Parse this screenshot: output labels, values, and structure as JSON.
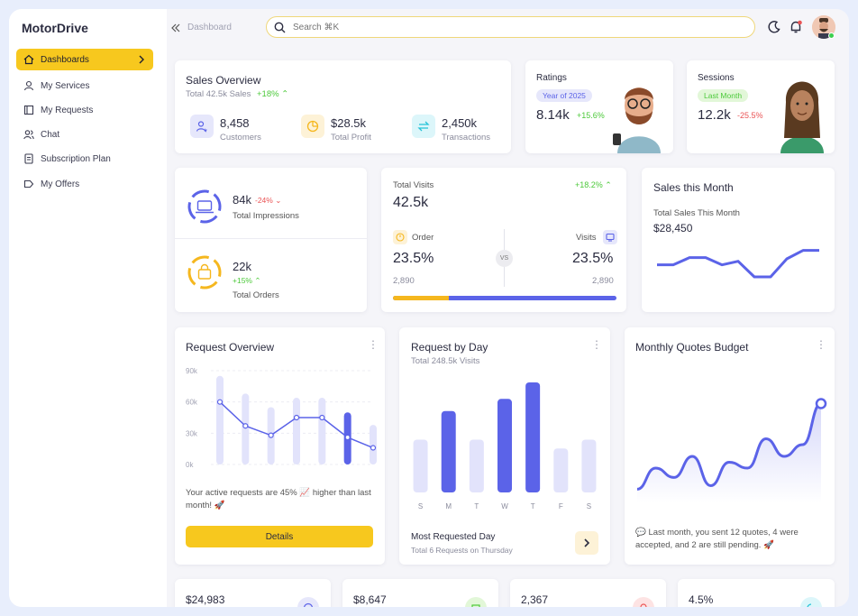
{
  "brand": "MotorDrive",
  "sidebar": {
    "items": [
      {
        "label": "Dashboards",
        "icon": "home-icon"
      },
      {
        "label": "My Services",
        "icon": "user-icon"
      },
      {
        "label": "My Requests",
        "icon": "book-icon"
      },
      {
        "label": "Chat",
        "icon": "users-icon"
      },
      {
        "label": "Subscription Plan",
        "icon": "document-icon"
      },
      {
        "label": "My Offers",
        "icon": "tag-icon"
      }
    ]
  },
  "topbar": {
    "breadcrumb": "Dashboard",
    "search_placeholder": "Search ⌘K"
  },
  "sales_overview": {
    "title": "Sales Overview",
    "subtitle": "Total 42.5k Sales",
    "change": "+18%",
    "stats": [
      {
        "value": "8,458",
        "label": "Customers"
      },
      {
        "value": "$28.5k",
        "label": "Total Profit"
      },
      {
        "value": "2,450k",
        "label": "Transactions"
      }
    ]
  },
  "ratings": {
    "title": "Ratings",
    "pill": "Year of 2025",
    "value": "8.14k",
    "change": "+15.6%"
  },
  "sessions": {
    "title": "Sessions",
    "pill": "Last Month",
    "value": "12.2k",
    "change": "-25.5%"
  },
  "impressions": {
    "value": "84k",
    "change": "-24%",
    "label": "Total Impressions"
  },
  "orders": {
    "value": "22k",
    "change": "+15%",
    "label": "Total Orders"
  },
  "visits": {
    "title": "Total Visits",
    "change": "+18.2%",
    "value": "42.5k",
    "order_label": "Order",
    "visits_label": "Visits",
    "vs": "VS",
    "order_pct": "23.5%",
    "visits_pct": "23.5%",
    "order_count": "2,890",
    "visits_count": "2,890",
    "order_share": 0.25
  },
  "sales_month": {
    "title": "Sales this Month",
    "subtitle": "Total Sales This Month",
    "value": "$28,450",
    "chart_data": {
      "type": "line",
      "values": [
        28,
        28,
        34,
        34,
        28,
        31,
        18,
        18,
        33,
        40,
        40
      ]
    }
  },
  "request_overview": {
    "title": "Request Overview",
    "ticks": [
      "90k",
      "60k",
      "30k",
      "0k"
    ],
    "chart_data": {
      "type": "bar",
      "ylim": [
        0,
        90
      ],
      "bars": [
        85,
        68,
        55,
        64,
        64,
        50,
        38
      ],
      "line": [
        60,
        37,
        28,
        45,
        45,
        26,
        16
      ],
      "highlight_index": 5
    },
    "message": "Your active requests are 45% 📈 higher than last month! 🚀",
    "button": "Details"
  },
  "request_day": {
    "title": "Request by Day",
    "subtitle": "Total 248.5k Visits",
    "chart_data": {
      "type": "bar",
      "categories": [
        "S",
        "M",
        "T",
        "W",
        "T",
        "F",
        "S"
      ],
      "values": [
        48,
        74,
        48,
        85,
        100,
        40,
        48
      ],
      "highlight": [
        false,
        true,
        false,
        true,
        true,
        false,
        false
      ]
    },
    "footer_title": "Most Requested Day",
    "footer_sub": "Total 6 Requests on Thursday"
  },
  "quotes_budget": {
    "title": "Monthly Quotes Budget",
    "chart_data": {
      "type": "area",
      "values": [
        12,
        30,
        22,
        40,
        15,
        35,
        30,
        55,
        40,
        50,
        85
      ]
    },
    "message": "💬 Last month, you sent 12 quotes, 4 were accepted, and 2 are still pending. 🚀"
  },
  "bottom_cards": [
    {
      "value": "$24,983",
      "color": "#5b63e8"
    },
    {
      "value": "$8,647",
      "color": "#4cc93a"
    },
    {
      "value": "2,367",
      "color": "#ea5455"
    },
    {
      "value": "4.5%",
      "color": "#24c3d8"
    }
  ],
  "colors": {
    "accent": "#f7c81e",
    "primary": "#5b63e8",
    "light_primary": "#e2e3fb"
  }
}
